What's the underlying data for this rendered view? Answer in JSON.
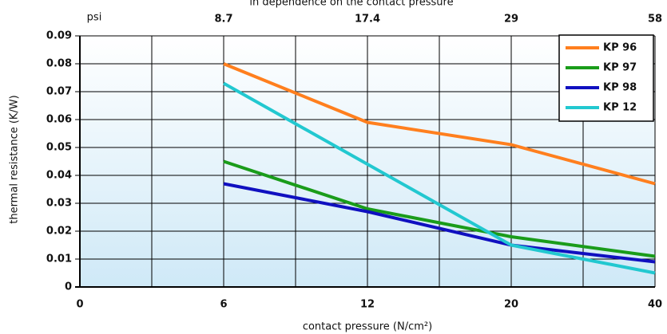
{
  "chart_data": {
    "type": "line",
    "title": "in dependence on the contact pressure",
    "x_label": "contact pressure (N/cm²)",
    "y_label": "thermal resistance (K/W)",
    "top_axis_label": "psi",
    "categories": [
      "0",
      "6",
      "12",
      "20",
      "40"
    ],
    "top_categories": [
      null,
      "8.7",
      "17.4",
      "29",
      "58"
    ],
    "ylim": [
      0,
      0.09
    ],
    "yticks": [
      0,
      0.01,
      0.02,
      0.03,
      0.04,
      0.05,
      0.06,
      0.07,
      0.08,
      0.09
    ],
    "grid": true,
    "legend": "upper right",
    "series": [
      {
        "name": "KP 96",
        "color": "#ff7f1e",
        "values": [
          null,
          0.08,
          0.059,
          0.051,
          0.037
        ]
      },
      {
        "name": "KP 97",
        "color": "#1a9c1a",
        "values": [
          null,
          0.045,
          0.028,
          0.018,
          0.011
        ]
      },
      {
        "name": "KP 98",
        "color": "#1010c0",
        "values": [
          null,
          0.037,
          0.027,
          0.015,
          0.009
        ]
      },
      {
        "name": "KP 12",
        "color": "#22c8d0",
        "values": [
          null,
          0.073,
          0.044,
          0.015,
          0.005
        ]
      }
    ]
  }
}
